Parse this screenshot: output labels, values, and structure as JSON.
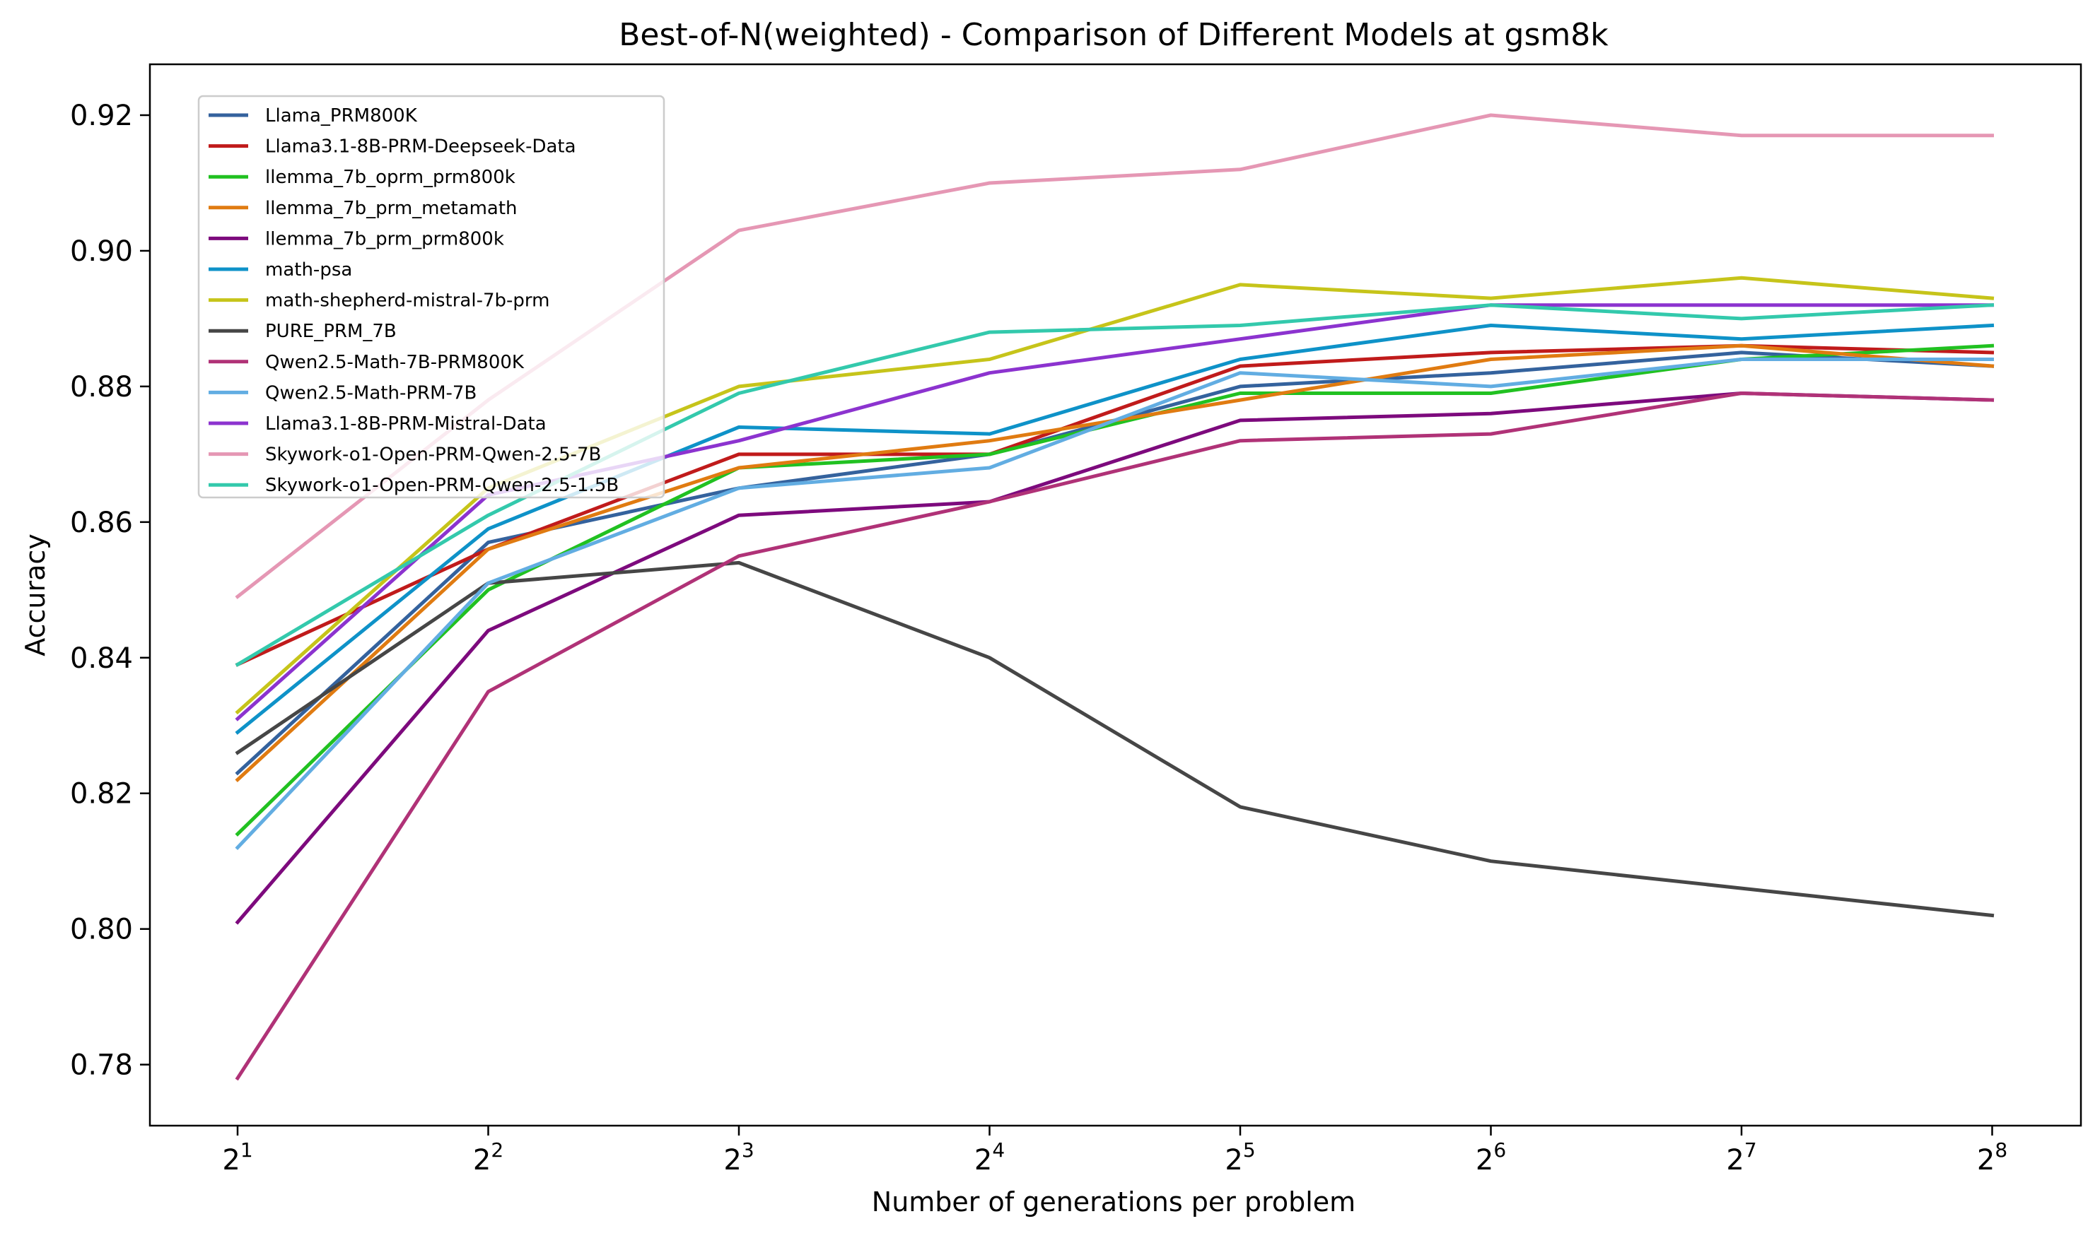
{
  "chart_data": {
    "type": "line",
    "title": "Best-of-N(weighted) - Comparison of Different Models at gsm8k",
    "xlabel": "Number of generations per problem",
    "ylabel": "Accuracy",
    "x": [
      2,
      4,
      8,
      16,
      32,
      64,
      128,
      256
    ],
    "x_tick_base": "2",
    "x_tick_exponents": [
      "1",
      "2",
      "3",
      "4",
      "5",
      "6",
      "7",
      "8"
    ],
    "x_scale": "log2",
    "ylim": [
      0.771,
      0.9275
    ],
    "y_ticks": [
      0.78,
      0.8,
      0.82,
      0.84,
      0.86,
      0.88,
      0.9,
      0.92
    ],
    "y_tick_labels": [
      "0.78",
      "0.80",
      "0.82",
      "0.84",
      "0.86",
      "0.88",
      "0.90",
      "0.92"
    ],
    "grid": false,
    "legend_position": "top-left",
    "series": [
      {
        "name": "Llama_PRM800K",
        "color": "#34629d",
        "values": [
          0.823,
          0.857,
          0.865,
          0.87,
          0.88,
          0.882,
          0.885,
          0.883
        ]
      },
      {
        "name": "Llama3.1-8B-PRM-Deepseek-Data",
        "color": "#c01b1b",
        "values": [
          0.839,
          0.856,
          0.87,
          0.87,
          0.883,
          0.885,
          0.886,
          0.885
        ]
      },
      {
        "name": "llemma_7b_oprm_prm800k",
        "color": "#21c121",
        "values": [
          0.814,
          0.85,
          0.868,
          0.87,
          0.879,
          0.879,
          0.884,
          0.886
        ]
      },
      {
        "name": "llemma_7b_prm_metamath",
        "color": "#e07b11",
        "values": [
          0.822,
          0.856,
          0.868,
          0.872,
          0.878,
          0.884,
          0.886,
          0.883
        ]
      },
      {
        "name": "llemma_7b_prm_prm800k",
        "color": "#7d0a7d",
        "values": [
          0.801,
          0.844,
          0.861,
          0.863,
          0.875,
          0.876,
          0.879,
          0.878
        ]
      },
      {
        "name": "math-psa",
        "color": "#0e92c8",
        "values": [
          0.829,
          0.859,
          0.874,
          0.873,
          0.884,
          0.889,
          0.887,
          0.889
        ]
      },
      {
        "name": "math-shepherd-mistral-7b-prm",
        "color": "#c6c41a",
        "values": [
          0.832,
          0.865,
          0.88,
          0.884,
          0.895,
          0.893,
          0.896,
          0.893
        ]
      },
      {
        "name": "PURE_PRM_7B",
        "color": "#464646",
        "values": [
          0.826,
          0.851,
          0.854,
          0.84,
          0.818,
          0.81,
          0.806,
          0.802
        ]
      },
      {
        "name": "Qwen2.5-Math-7B-PRM800K",
        "color": "#b03277",
        "values": [
          0.778,
          0.835,
          0.855,
          0.863,
          0.872,
          0.873,
          0.879,
          0.878
        ]
      },
      {
        "name": "Qwen2.5-Math-PRM-7B",
        "color": "#62ade2",
        "values": [
          0.812,
          0.851,
          0.865,
          0.868,
          0.882,
          0.88,
          0.884,
          0.884
        ]
      },
      {
        "name": "Llama3.1-8B-PRM-Mistral-Data",
        "color": "#8c33cf",
        "values": [
          0.831,
          0.864,
          0.872,
          0.882,
          0.887,
          0.892,
          0.892,
          0.892
        ]
      },
      {
        "name": "Skywork-o1-Open-PRM-Qwen-2.5-7B",
        "color": "#e597b4",
        "values": [
          0.849,
          0.878,
          0.903,
          0.91,
          0.912,
          0.92,
          0.917,
          0.917
        ]
      },
      {
        "name": "Skywork-o1-Open-PRM-Qwen-2.5-1.5B",
        "color": "#33c9ac",
        "values": [
          0.839,
          0.861,
          0.879,
          0.888,
          0.889,
          0.892,
          0.89,
          0.892
        ]
      }
    ]
  }
}
